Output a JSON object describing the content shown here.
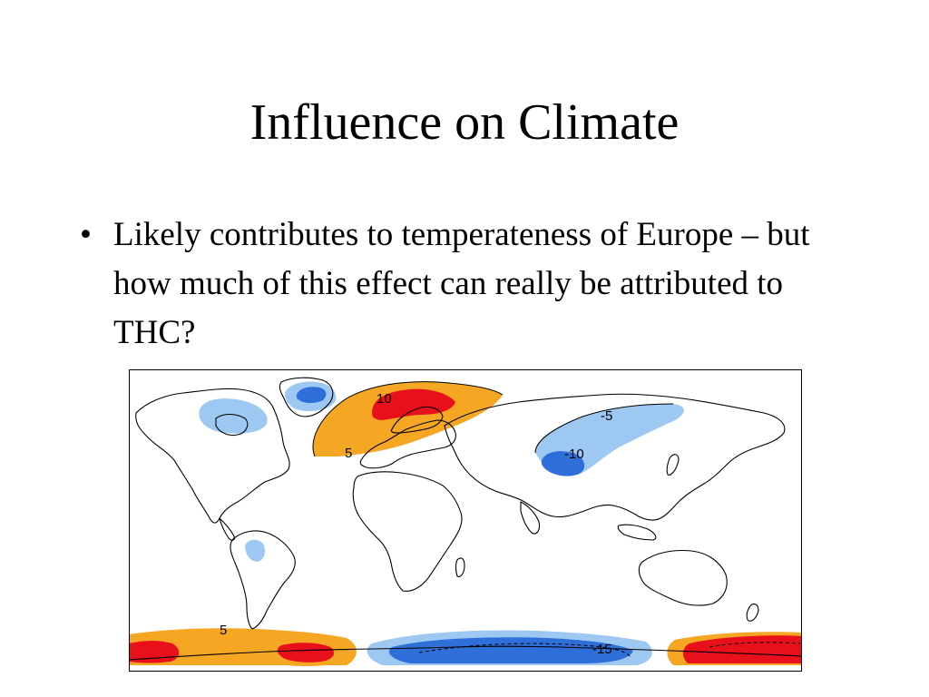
{
  "slide": {
    "title": "Influence on Climate",
    "bullets": [
      {
        "marker": "•",
        "text": "Likely contributes to temperateness of Europe – but how much of this effect can really be attributed to THC?"
      }
    ]
  },
  "map": {
    "colors": {
      "warm_light": "#f5a623",
      "warm_strong": "#e8111b",
      "cool_light": "#9cc8f2",
      "cool_strong": "#2f6fd9",
      "coastline": "#000000",
      "frame": "#000000"
    },
    "contour_labels": [
      "10",
      "5",
      "-5",
      "-10",
      "5",
      "-15"
    ]
  }
}
